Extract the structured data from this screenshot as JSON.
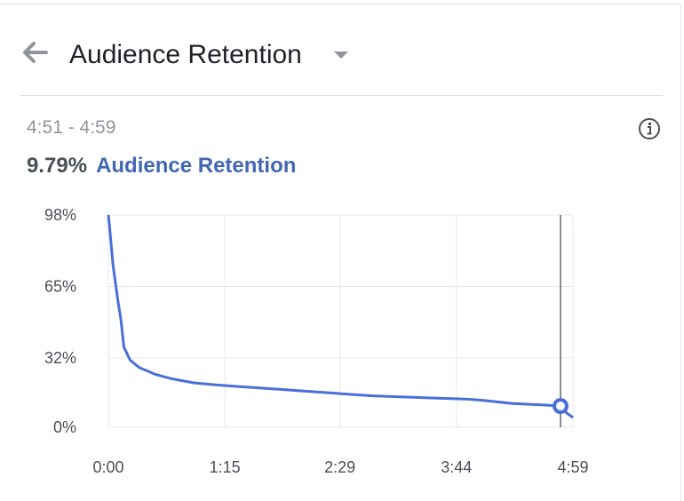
{
  "header": {
    "title": "Audience Retention",
    "back_icon": "arrow-left-icon",
    "dropdown_icon": "caret-down-icon"
  },
  "time_range": "4:51 - 4:59",
  "info_icon": "info-icon",
  "summary": {
    "value": "9.79%",
    "metric": "Audience Retention"
  },
  "colors": {
    "line": "#4a6fd9",
    "accent": "#4267b2",
    "grid": "#e6e8eb",
    "cursor": "#606770"
  },
  "chart_data": {
    "type": "line",
    "title": "",
    "xlabel": "",
    "ylabel": "",
    "x_tick_labels": [
      "0:00",
      "1:15",
      "2:29",
      "3:44",
      "4:59"
    ],
    "x_tick_seconds": [
      0,
      75,
      149,
      224,
      299
    ],
    "y_tick_labels": [
      "98%",
      "65%",
      "32%",
      "0%"
    ],
    "y_tick_values": [
      98,
      65,
      32,
      0
    ],
    "xlim": [
      0,
      299
    ],
    "ylim": [
      0,
      98
    ],
    "grid": true,
    "series": [
      {
        "x": [
          0,
          1,
          3,
          6,
          8,
          10,
          14,
          20,
          30,
          40,
          55,
          70,
          90,
          110,
          130,
          150,
          170,
          190,
          210,
          230,
          240,
          260,
          280,
          291,
          295,
          299
        ],
        "values": [
          98,
          91,
          75,
          59,
          50,
          37,
          31,
          27.5,
          24.5,
          22.5,
          20.5,
          19.5,
          18.5,
          17.5,
          16.5,
          15.5,
          14.5,
          14,
          13.5,
          13,
          12.5,
          11,
          10.3,
          9.79,
          6.5,
          4.5
        ]
      }
    ],
    "marker": {
      "x": 291,
      "value": 9.79
    }
  }
}
